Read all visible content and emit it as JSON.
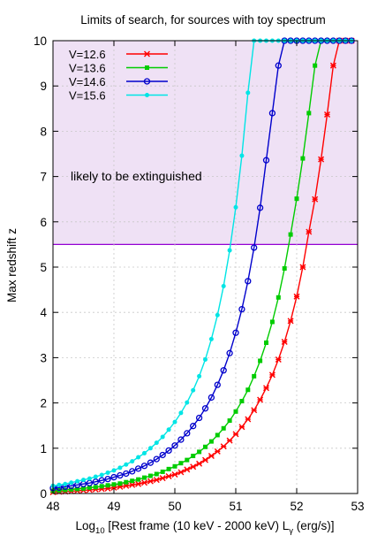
{
  "chart_data": {
    "type": "line",
    "title": "Limits of search, for sources with toy spectrum",
    "xlabel": {
      "prefix": "Log",
      "subscript": "10",
      "middle": " [Rest frame (10 keV - 2000 keV)  L",
      "gamma_subscript": "γ",
      "suffix": " (erg/s)]"
    },
    "ylabel": "Max redshift z",
    "xlim": [
      48,
      53
    ],
    "ylim": [
      0,
      10
    ],
    "xticks": [
      "48",
      "49",
      "50",
      "51",
      "52",
      "53"
    ],
    "yticks": [
      "0",
      "1",
      "2",
      "3",
      "4",
      "5",
      "6",
      "7",
      "8",
      "9",
      "10"
    ],
    "grid": true,
    "legend_position": "top-left",
    "annotation": {
      "text": "likely to be extinguished",
      "color": "#9400D3",
      "shaded_region_ymin": 5.5,
      "shaded_region_ymax": 10,
      "fill_color": "#EFE1F5"
    },
    "series": [
      {
        "name": "V=12.6",
        "color": "#FF0000",
        "marker": "x",
        "x": [
          48.0,
          48.1,
          48.2,
          48.3,
          48.4,
          48.5,
          48.6,
          48.7,
          48.8,
          48.9,
          49.0,
          49.1,
          49.2,
          49.3,
          49.4,
          49.5,
          49.6,
          49.7,
          49.8,
          49.9,
          50.0,
          50.1,
          50.2,
          50.3,
          50.4,
          50.5,
          50.6,
          50.7,
          50.8,
          50.9,
          51.0,
          51.1,
          51.2,
          51.3,
          51.4,
          51.5,
          51.6,
          51.7,
          51.8,
          51.9,
          52.0,
          52.1,
          52.2,
          52.3,
          52.4,
          52.5,
          52.6,
          52.7,
          52.8,
          52.9
        ],
        "y": [
          0.03,
          0.04,
          0.045,
          0.05,
          0.06,
          0.07,
          0.08,
          0.09,
          0.1,
          0.11,
          0.13,
          0.15,
          0.17,
          0.19,
          0.21,
          0.24,
          0.27,
          0.3,
          0.34,
          0.38,
          0.42,
          0.47,
          0.53,
          0.59,
          0.66,
          0.74,
          0.83,
          0.93,
          1.04,
          1.17,
          1.31,
          1.47,
          1.64,
          1.84,
          2.07,
          2.33,
          2.62,
          2.96,
          3.35,
          3.81,
          4.35,
          5.0,
          5.78,
          6.5,
          7.38,
          8.37,
          9.45,
          10.0,
          10.0,
          10.0
        ]
      },
      {
        "name": "V=13.6",
        "color": "#00CC00",
        "marker": "square",
        "x": [
          48.0,
          48.1,
          48.2,
          48.3,
          48.4,
          48.5,
          48.6,
          48.7,
          48.8,
          48.9,
          49.0,
          49.1,
          49.2,
          49.3,
          49.4,
          49.5,
          49.6,
          49.7,
          49.8,
          49.9,
          50.0,
          50.1,
          50.2,
          50.3,
          50.4,
          50.5,
          50.6,
          50.7,
          50.8,
          50.9,
          51.0,
          51.1,
          51.2,
          51.3,
          51.4,
          51.5,
          51.6,
          51.7,
          51.8,
          51.9,
          52.0,
          52.1,
          52.2,
          52.3,
          52.4,
          52.5,
          52.6,
          52.7,
          52.8,
          52.9
        ],
        "y": [
          0.06,
          0.07,
          0.08,
          0.09,
          0.1,
          0.11,
          0.13,
          0.14,
          0.16,
          0.18,
          0.2,
          0.22,
          0.25,
          0.28,
          0.31,
          0.35,
          0.39,
          0.43,
          0.48,
          0.54,
          0.6,
          0.67,
          0.74,
          0.83,
          0.92,
          1.03,
          1.15,
          1.29,
          1.44,
          1.61,
          1.81,
          2.04,
          2.29,
          2.59,
          2.93,
          3.33,
          3.79,
          4.33,
          4.97,
          5.72,
          6.51,
          7.4,
          8.4,
          9.45,
          10.0,
          10.0,
          10.0,
          10.0,
          10.0,
          10.0
        ]
      },
      {
        "name": "V=14.6",
        "color": "#0000CC",
        "marker": "circle-open",
        "x": [
          48.0,
          48.1,
          48.2,
          48.3,
          48.4,
          48.5,
          48.6,
          48.7,
          48.8,
          48.9,
          49.0,
          49.1,
          49.2,
          49.3,
          49.4,
          49.5,
          49.6,
          49.7,
          49.8,
          49.9,
          50.0,
          50.1,
          50.2,
          50.3,
          50.4,
          50.5,
          50.6,
          50.7,
          50.8,
          50.9,
          51.0,
          51.1,
          51.2,
          51.3,
          51.4,
          51.5,
          51.6,
          51.7,
          51.8,
          51.9,
          52.0,
          52.1,
          52.2,
          52.3,
          52.4,
          52.5,
          52.6,
          52.7,
          52.8,
          52.9
        ],
        "y": [
          0.12,
          0.13,
          0.15,
          0.17,
          0.19,
          0.21,
          0.23,
          0.26,
          0.29,
          0.32,
          0.36,
          0.4,
          0.44,
          0.49,
          0.55,
          0.61,
          0.68,
          0.76,
          0.85,
          0.95,
          1.06,
          1.19,
          1.33,
          1.49,
          1.67,
          1.88,
          2.12,
          2.4,
          2.72,
          3.1,
          3.55,
          4.07,
          4.69,
          5.43,
          6.31,
          7.36,
          8.4,
          9.45,
          10.0,
          10.0,
          10.0,
          10.0,
          10.0,
          10.0,
          10.0,
          10.0,
          10.0,
          10.0,
          10.0,
          10.0
        ]
      },
      {
        "name": "V=15.6",
        "color": "#00E5E5",
        "marker": "dot",
        "x": [
          48.0,
          48.1,
          48.2,
          48.3,
          48.4,
          48.5,
          48.6,
          48.7,
          48.8,
          48.9,
          49.0,
          49.1,
          49.2,
          49.3,
          49.4,
          49.5,
          49.6,
          49.7,
          49.8,
          49.9,
          50.0,
          50.1,
          50.2,
          50.3,
          50.4,
          50.5,
          50.6,
          50.7,
          50.8,
          50.9,
          51.0,
          51.1,
          51.2,
          51.3,
          51.4,
          51.5,
          51.6,
          51.7,
          51.8,
          51.9,
          52.0,
          52.1,
          52.2,
          52.3,
          52.4,
          52.5,
          52.6,
          52.7,
          52.8,
          52.9
        ],
        "y": [
          0.17,
          0.19,
          0.21,
          0.24,
          0.27,
          0.3,
          0.33,
          0.37,
          0.41,
          0.46,
          0.51,
          0.57,
          0.64,
          0.71,
          0.8,
          0.89,
          1.0,
          1.12,
          1.25,
          1.41,
          1.58,
          1.78,
          2.01,
          2.28,
          2.59,
          2.96,
          3.41,
          3.94,
          4.58,
          5.37,
          6.32,
          7.46,
          8.85,
          10.0,
          10.0,
          10.0,
          10.0,
          10.0,
          10.0,
          10.0,
          10.0,
          10.0,
          10.0,
          10.0,
          10.0,
          10.0,
          10.0,
          10.0,
          10.0,
          10.0
        ]
      }
    ]
  }
}
